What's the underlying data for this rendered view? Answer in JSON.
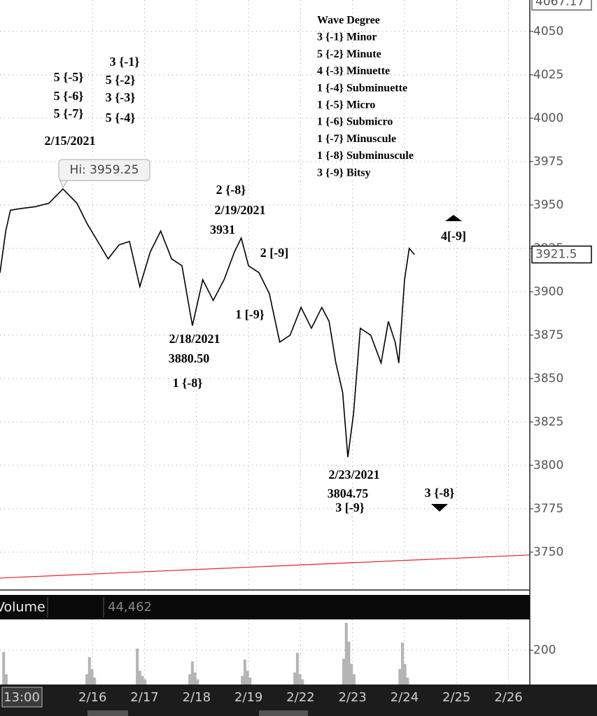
{
  "chart_data": {
    "type": "line",
    "xlim": [
      -0.78,
      9.41
    ],
    "xticks": [
      {
        "value": 1,
        "label": "2/16"
      },
      {
        "value": 2,
        "label": "2/17"
      },
      {
        "value": 3,
        "label": "2/18"
      },
      {
        "value": 4,
        "label": "2/19"
      },
      {
        "value": 5,
        "label": "2/22"
      },
      {
        "value": 6,
        "label": "2/23"
      },
      {
        "value": 7,
        "label": "2/24"
      },
      {
        "value": 8,
        "label": "2/25"
      },
      {
        "value": 9,
        "label": "2/26"
      }
    ],
    "ylim": [
      3728.2,
      4068.1
    ],
    "yticks": [
      3750,
      3775,
      3800,
      3825,
      3850,
      3875,
      3900,
      3925,
      3950,
      3975,
      4000,
      4025,
      4050
    ],
    "grid": true,
    "series": [
      {
        "color": "#000000",
        "x": [
          -0.78,
          -0.67,
          -0.58,
          -0.38,
          -0.11,
          0.16,
          0.43,
          0.7,
          0.9,
          1.1,
          1.3,
          1.51,
          1.71,
          1.91,
          2.11,
          2.31,
          2.52,
          2.72,
          2.92,
          3.12,
          3.32,
          3.53,
          3.73,
          3.86,
          4.0,
          4.2,
          4.4,
          4.6,
          4.8,
          5.01,
          5.21,
          5.41,
          5.55,
          5.68,
          5.81,
          5.91,
          6.02,
          6.15,
          6.35,
          6.55,
          6.69,
          6.82,
          6.89,
          7.0,
          7.09,
          7.19
        ],
        "values": [
          3911,
          3935,
          3947,
          3948,
          3949,
          3951,
          3959.25,
          3951,
          3939,
          3929,
          3919,
          3927,
          3929,
          3903,
          3923,
          3935,
          3919,
          3915,
          3880.5,
          3907,
          3895,
          3907,
          3923,
          3931,
          3915,
          3911,
          3899,
          3871,
          3875,
          3891,
          3879,
          3891,
          3883,
          3859,
          3842,
          3804.75,
          3830,
          3879,
          3875,
          3859,
          3883,
          3871,
          3859,
          3907,
          3925,
          3921.5
        ]
      },
      {
        "color": "#e8323c",
        "x": [
          -0.78,
          9.41
        ],
        "values": [
          3735.1,
          3748.4
        ]
      }
    ],
    "price_labels": [
      4067.17,
      3921.5
    ],
    "callout": "Hi: 3959.25",
    "annotations": [
      "3 {-1}",
      "5 {-5}",
      "5 {-2}",
      "5 {-6}",
      "3 {-3}",
      "5 {-7}",
      "5 {-4}",
      "2/15/2021",
      "2 {-8}",
      "2/19/2021",
      "3931",
      "2 [-9]",
      "4[-9]",
      "1 [-9}",
      "2/18/2021",
      "3880.50",
      "1 {-8}",
      "2/23/2021",
      "3804.75",
      "3 [-9}",
      "3 {-8}"
    ],
    "wave_degree": {
      "title": "Wave Degree",
      "items": [
        "3 {-1} Minor",
        "5 {-2} Minute",
        "4 {-3} Minuette",
        "1 {-4} Subminuette",
        "1 {-5} Micro",
        "1 {-6} Submicro",
        "1 {-7} Minuscule",
        "1 {-8} Subminuscule",
        "3 {-9} Bitsy"
      ]
    },
    "cursor_label": "13:00",
    "volume": {
      "type": "bar",
      "title": "Volume",
      "last": "44,462",
      "color": "#b4b4b4",
      "x": [
        -0.71,
        -0.66,
        0.89,
        0.94,
        0.99,
        1.04,
        1.86,
        1.91,
        1.96,
        2.01,
        2.87,
        2.92,
        2.97,
        3.02,
        3.88,
        3.93,
        3.98,
        4.03,
        4.89,
        4.94,
        4.99,
        5.04,
        5.83,
        5.88,
        5.93,
        5.98,
        6.03,
        6.91,
        6.96,
        7.01,
        7.06
      ],
      "values": [
        190,
        60,
        60,
        160,
        90,
        40,
        210,
        80,
        50,
        30,
        60,
        135,
        70,
        30,
        50,
        145,
        80,
        40,
        70,
        185,
        60,
        30,
        150,
        360,
        250,
        120,
        60,
        90,
        245,
        120,
        40
      ],
      "ylim": [
        0,
        380
      ],
      "yticks": [
        200
      ]
    }
  }
}
